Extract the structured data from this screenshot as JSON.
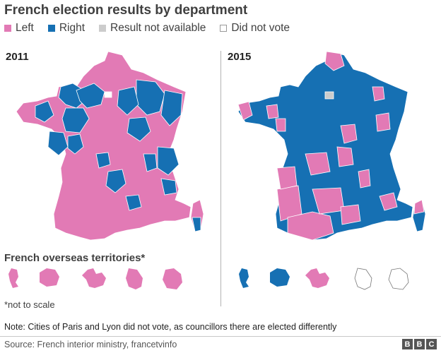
{
  "title": "French election results by department",
  "legend": [
    {
      "label": "Left",
      "color": "#e27ab5"
    },
    {
      "label": "Right",
      "color": "#1670b3"
    },
    {
      "label": "Result not available",
      "color": "#cccccc"
    },
    {
      "label": "Did not vote",
      "color": "#ffffff"
    }
  ],
  "maps": [
    {
      "year": "2011",
      "dominant": "Left"
    },
    {
      "year": "2015",
      "dominant": "Right"
    }
  ],
  "overseas": {
    "title": "French overseas territories*",
    "note": "*not to scale",
    "territories_2011": [
      "Left",
      "Left",
      "Left",
      "Left",
      "Left"
    ],
    "territories_2015": [
      "Right",
      "Right",
      "Left",
      "Did not vote",
      "Did not vote"
    ]
  },
  "footnote": "Note: Cities of Paris and Lyon did not vote, as councillors there are elected differently",
  "source": "Source: French interior ministry, francetvinfo",
  "logo": [
    "B",
    "B",
    "C"
  ],
  "colors": {
    "left": "#e27ab5",
    "right": "#1670b3",
    "na": "#cccccc",
    "text": "#404040",
    "divider": "#b3b3b3"
  }
}
